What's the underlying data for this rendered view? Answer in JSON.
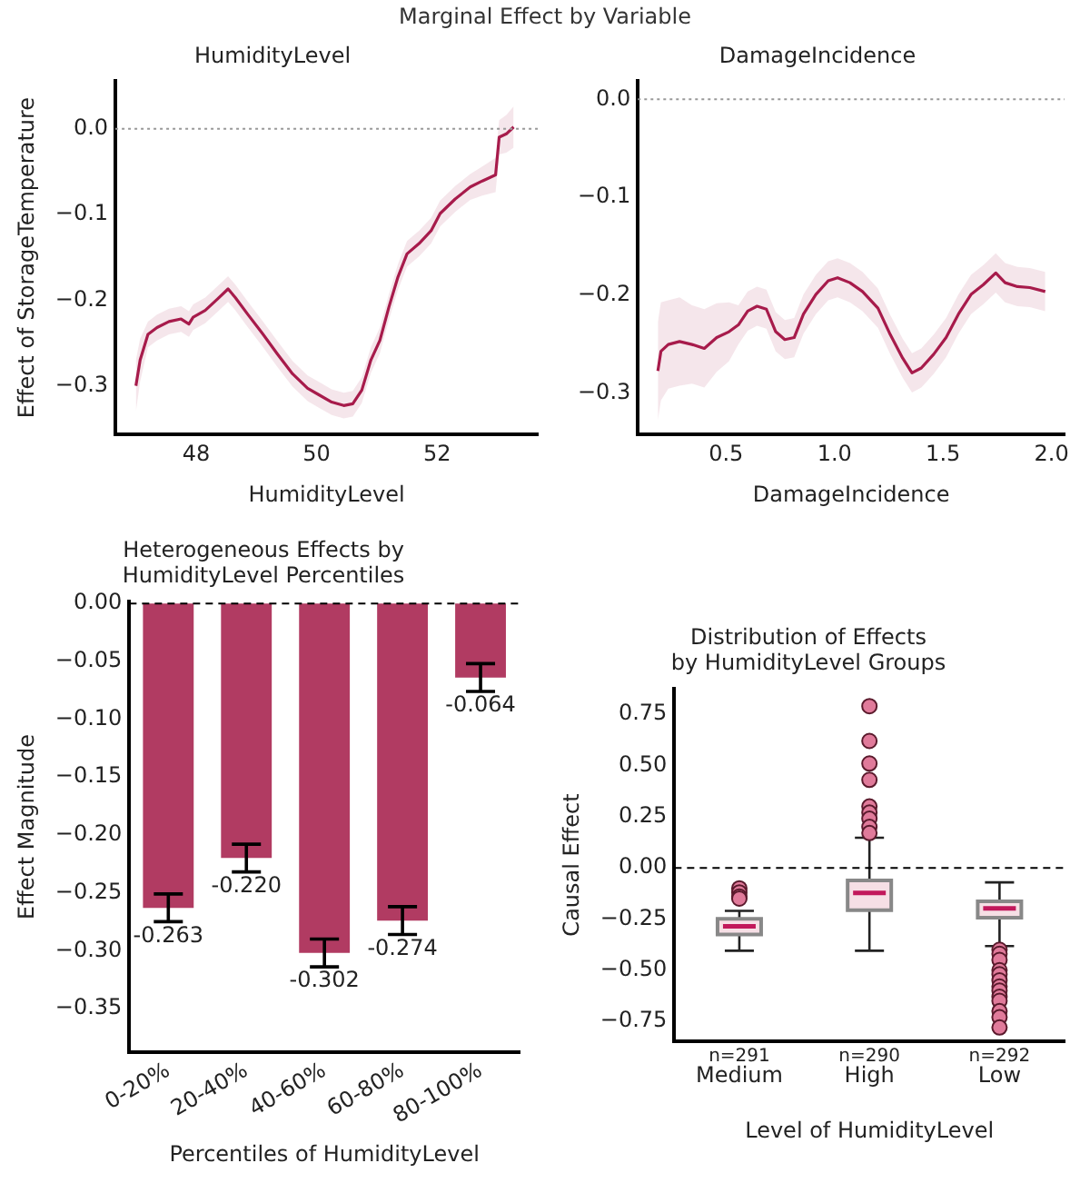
{
  "chart_data": [
    {
      "type": "line",
      "title": "Marginal Effect by Variable",
      "subtitle": "HumidityLevel",
      "xlabel": "HumidityLevel",
      "ylabel": "Effect of StorageTemperature",
      "x": [
        47.0,
        47.07,
        47.2,
        47.35,
        47.55,
        47.75,
        47.88,
        47.95,
        48.15,
        48.35,
        48.53,
        48.65,
        48.85,
        49.1,
        49.35,
        49.6,
        49.85,
        50.05,
        50.25,
        50.45,
        50.6,
        50.75,
        50.9,
        51.05,
        51.2,
        51.35,
        51.5,
        51.7,
        51.9,
        52.05,
        52.3,
        52.55,
        52.75,
        52.97,
        53.03,
        53.15,
        53.27
      ],
      "series": [
        {
          "color": "#a81c4c",
          "values": [
            -0.3,
            -0.27,
            -0.24,
            -0.232,
            -0.225,
            -0.222,
            -0.228,
            -0.22,
            -0.212,
            -0.199,
            -0.187,
            -0.197,
            -0.216,
            -0.239,
            -0.263,
            -0.286,
            -0.303,
            -0.311,
            -0.319,
            -0.323,
            -0.321,
            -0.305,
            -0.27,
            -0.247,
            -0.208,
            -0.173,
            -0.146,
            -0.134,
            -0.119,
            -0.099,
            -0.082,
            -0.068,
            -0.061,
            -0.054,
            -0.01,
            -0.006,
            0.002
          ],
          "lower": [
            -0.33,
            -0.295,
            -0.255,
            -0.247,
            -0.24,
            -0.237,
            -0.243,
            -0.235,
            -0.227,
            -0.214,
            -0.202,
            -0.212,
            -0.231,
            -0.254,
            -0.278,
            -0.301,
            -0.318,
            -0.326,
            -0.334,
            -0.338,
            -0.336,
            -0.32,
            -0.285,
            -0.262,
            -0.223,
            -0.188,
            -0.161,
            -0.149,
            -0.134,
            -0.114,
            -0.097,
            -0.083,
            -0.078,
            -0.074,
            -0.03,
            -0.028,
            -0.022
          ],
          "upper": [
            -0.27,
            -0.245,
            -0.225,
            -0.217,
            -0.21,
            -0.207,
            -0.213,
            -0.205,
            -0.197,
            -0.184,
            -0.172,
            -0.182,
            -0.201,
            -0.224,
            -0.248,
            -0.271,
            -0.288,
            -0.296,
            -0.304,
            -0.308,
            -0.306,
            -0.29,
            -0.255,
            -0.232,
            -0.193,
            -0.158,
            -0.131,
            -0.119,
            -0.104,
            -0.084,
            -0.067,
            -0.053,
            -0.044,
            -0.034,
            0.01,
            0.016,
            0.026
          ]
        }
      ],
      "xlim": [
        46.66,
        53.67
      ],
      "xticks": [
        48,
        50,
        52
      ],
      "ylim": [
        -0.357,
        0.056
      ],
      "yticks": [
        {
          "value": 0,
          "label": "0.0"
        },
        {
          "value": -0.1,
          "label": "−0.1"
        },
        {
          "value": -0.2,
          "label": "−0.2"
        },
        {
          "value": -0.3,
          "label": "−0.3"
        }
      ],
      "ref_lines": [
        {
          "axis": "y",
          "value": 0,
          "color": "#999999",
          "line_style": "dotted"
        }
      ],
      "marker": "none",
      "grid": false,
      "legend": false
    },
    {
      "type": "line",
      "title": "DamageIncidence",
      "xlabel": "DamageIncidence",
      "x": [
        0.186,
        0.2,
        0.234,
        0.286,
        0.343,
        0.4,
        0.457,
        0.514,
        0.557,
        0.6,
        0.643,
        0.686,
        0.729,
        0.771,
        0.814,
        0.857,
        0.914,
        0.971,
        1.014,
        1.071,
        1.129,
        1.2,
        1.257,
        1.314,
        1.357,
        1.4,
        1.457,
        1.514,
        1.571,
        1.629,
        1.686,
        1.743,
        1.786,
        1.843,
        1.9,
        1.971
      ],
      "series": [
        {
          "color": "#a81c4c",
          "values": [
            -0.277,
            -0.257,
            -0.25,
            -0.247,
            -0.25,
            -0.254,
            -0.243,
            -0.237,
            -0.23,
            -0.216,
            -0.211,
            -0.214,
            -0.237,
            -0.245,
            -0.243,
            -0.219,
            -0.199,
            -0.185,
            -0.182,
            -0.187,
            -0.196,
            -0.213,
            -0.24,
            -0.264,
            -0.279,
            -0.274,
            -0.26,
            -0.243,
            -0.219,
            -0.199,
            -0.189,
            -0.177,
            -0.187,
            -0.191,
            -0.192,
            -0.196
          ],
          "lower": [
            -0.327,
            -0.307,
            -0.295,
            -0.292,
            -0.29,
            -0.294,
            -0.278,
            -0.267,
            -0.25,
            -0.236,
            -0.231,
            -0.234,
            -0.257,
            -0.265,
            -0.263,
            -0.239,
            -0.219,
            -0.205,
            -0.202,
            -0.207,
            -0.216,
            -0.233,
            -0.26,
            -0.284,
            -0.299,
            -0.294,
            -0.28,
            -0.263,
            -0.239,
            -0.219,
            -0.209,
            -0.197,
            -0.207,
            -0.211,
            -0.212,
            -0.216
          ],
          "upper": [
            -0.227,
            -0.207,
            -0.205,
            -0.202,
            -0.21,
            -0.214,
            -0.208,
            -0.207,
            -0.21,
            -0.196,
            -0.191,
            -0.194,
            -0.217,
            -0.225,
            -0.223,
            -0.199,
            -0.179,
            -0.165,
            -0.162,
            -0.167,
            -0.176,
            -0.193,
            -0.22,
            -0.244,
            -0.259,
            -0.254,
            -0.24,
            -0.223,
            -0.199,
            -0.179,
            -0.169,
            -0.157,
            -0.167,
            -0.171,
            -0.172,
            -0.176
          ]
        }
      ],
      "xlim": [
        0.094,
        2.06
      ],
      "xticks": [
        0.5,
        {
          "value": 1,
          "label": "1.0"
        },
        1.5,
        {
          "value": 2,
          "label": "2.0"
        }
      ],
      "ylim": [
        -0.342,
        0.019
      ],
      "yticks": [
        {
          "value": 0,
          "label": "0.0"
        },
        {
          "value": -0.1,
          "label": "−0.1"
        },
        {
          "value": -0.2,
          "label": "−0.2"
        },
        {
          "value": -0.3,
          "label": "−0.3"
        }
      ],
      "ref_lines": [
        {
          "axis": "y",
          "value": 0,
          "color": "#999999",
          "line_style": "dotted"
        }
      ],
      "marker": "none",
      "grid": false,
      "legend": false
    },
    {
      "type": "bar",
      "title": "Heterogeneous Effects by\nHumidityLevel Percentiles",
      "xlabel": "Percentiles of HumidityLevel",
      "ylabel": "Effect Magnitude",
      "categories": [
        "0-20%",
        "20-40%",
        "40-60%",
        "60-80%",
        "80-100%"
      ],
      "values": [
        -0.263,
        -0.22,
        -0.302,
        -0.274,
        -0.064
      ],
      "color": "#b13b62",
      "errors": [
        0.012,
        0.012,
        0.012,
        0.012,
        0.012
      ],
      "value_labels": [
        "-0.263",
        "-0.220",
        "-0.302",
        "-0.274",
        "-0.064"
      ],
      "ylim": [
        -0.388,
        0.002
      ],
      "yticks": [
        {
          "value": 0,
          "label": "0.00"
        },
        {
          "value": -0.05,
          "label": "−0.05"
        },
        {
          "value": -0.1,
          "label": "−0.10"
        },
        {
          "value": -0.15,
          "label": "−0.15"
        },
        {
          "value": -0.2,
          "label": "−0.20"
        },
        {
          "value": -0.25,
          "label": "−0.25"
        },
        {
          "value": -0.3,
          "label": "−0.30"
        },
        {
          "value": -0.35,
          "label": "−0.35"
        }
      ],
      "ref_lines": [
        {
          "axis": "y",
          "value": 0,
          "color": "#000000",
          "line_style": "dashed"
        }
      ],
      "grid": false,
      "legend": false
    },
    {
      "type": "box",
      "title": "Distribution of Effects\nby HumidityLevel Groups",
      "xlabel": "Level of HumidityLevel",
      "ylabel": "Causal Effect",
      "categories": [
        "Medium",
        "High",
        "Low"
      ],
      "color": "#f6dfe5",
      "boxes": [
        {
          "low": -0.405,
          "q1": -0.326,
          "median": -0.286,
          "q3": -0.249,
          "high": -0.21,
          "outliers": [
            -0.1,
            -0.12,
            -0.14,
            -0.15
          ]
        },
        {
          "low": -0.405,
          "q1": -0.207,
          "median": -0.122,
          "q3": -0.062,
          "high": 0.147,
          "outliers": [
            0.79,
            0.62,
            0.51,
            0.43,
            0.3,
            0.27,
            0.24,
            0.2,
            0.17
          ]
        },
        {
          "low": -0.382,
          "q1": -0.243,
          "median": -0.198,
          "q3": -0.164,
          "high": -0.071,
          "outliers": [
            -0.4,
            -0.42,
            -0.45,
            -0.5,
            -0.52,
            -0.55,
            -0.58,
            -0.6,
            -0.63,
            -0.65,
            -0.7,
            -0.73,
            -0.78
          ]
        }
      ],
      "ylim": [
        -0.849,
        0.877
      ],
      "yticks": [
        {
          "value": 0.75,
          "label": "0.75"
        },
        {
          "value": 0.5,
          "label": "0.50"
        },
        {
          "value": 0.25,
          "label": "0.25"
        },
        {
          "value": 0,
          "label": "0.00"
        },
        {
          "value": -0.25,
          "label": "−0.25"
        },
        {
          "value": -0.5,
          "label": "−0.50"
        },
        {
          "value": -0.75,
          "label": "−0.75"
        }
      ],
      "ref_lines": [
        {
          "axis": "y",
          "value": 0,
          "color": "#000000",
          "line_style": "dashed"
        }
      ],
      "annotations": [
        "n=291",
        "n=290",
        "n=292"
      ],
      "marker": "circle",
      "grid": false,
      "legend": false
    }
  ]
}
